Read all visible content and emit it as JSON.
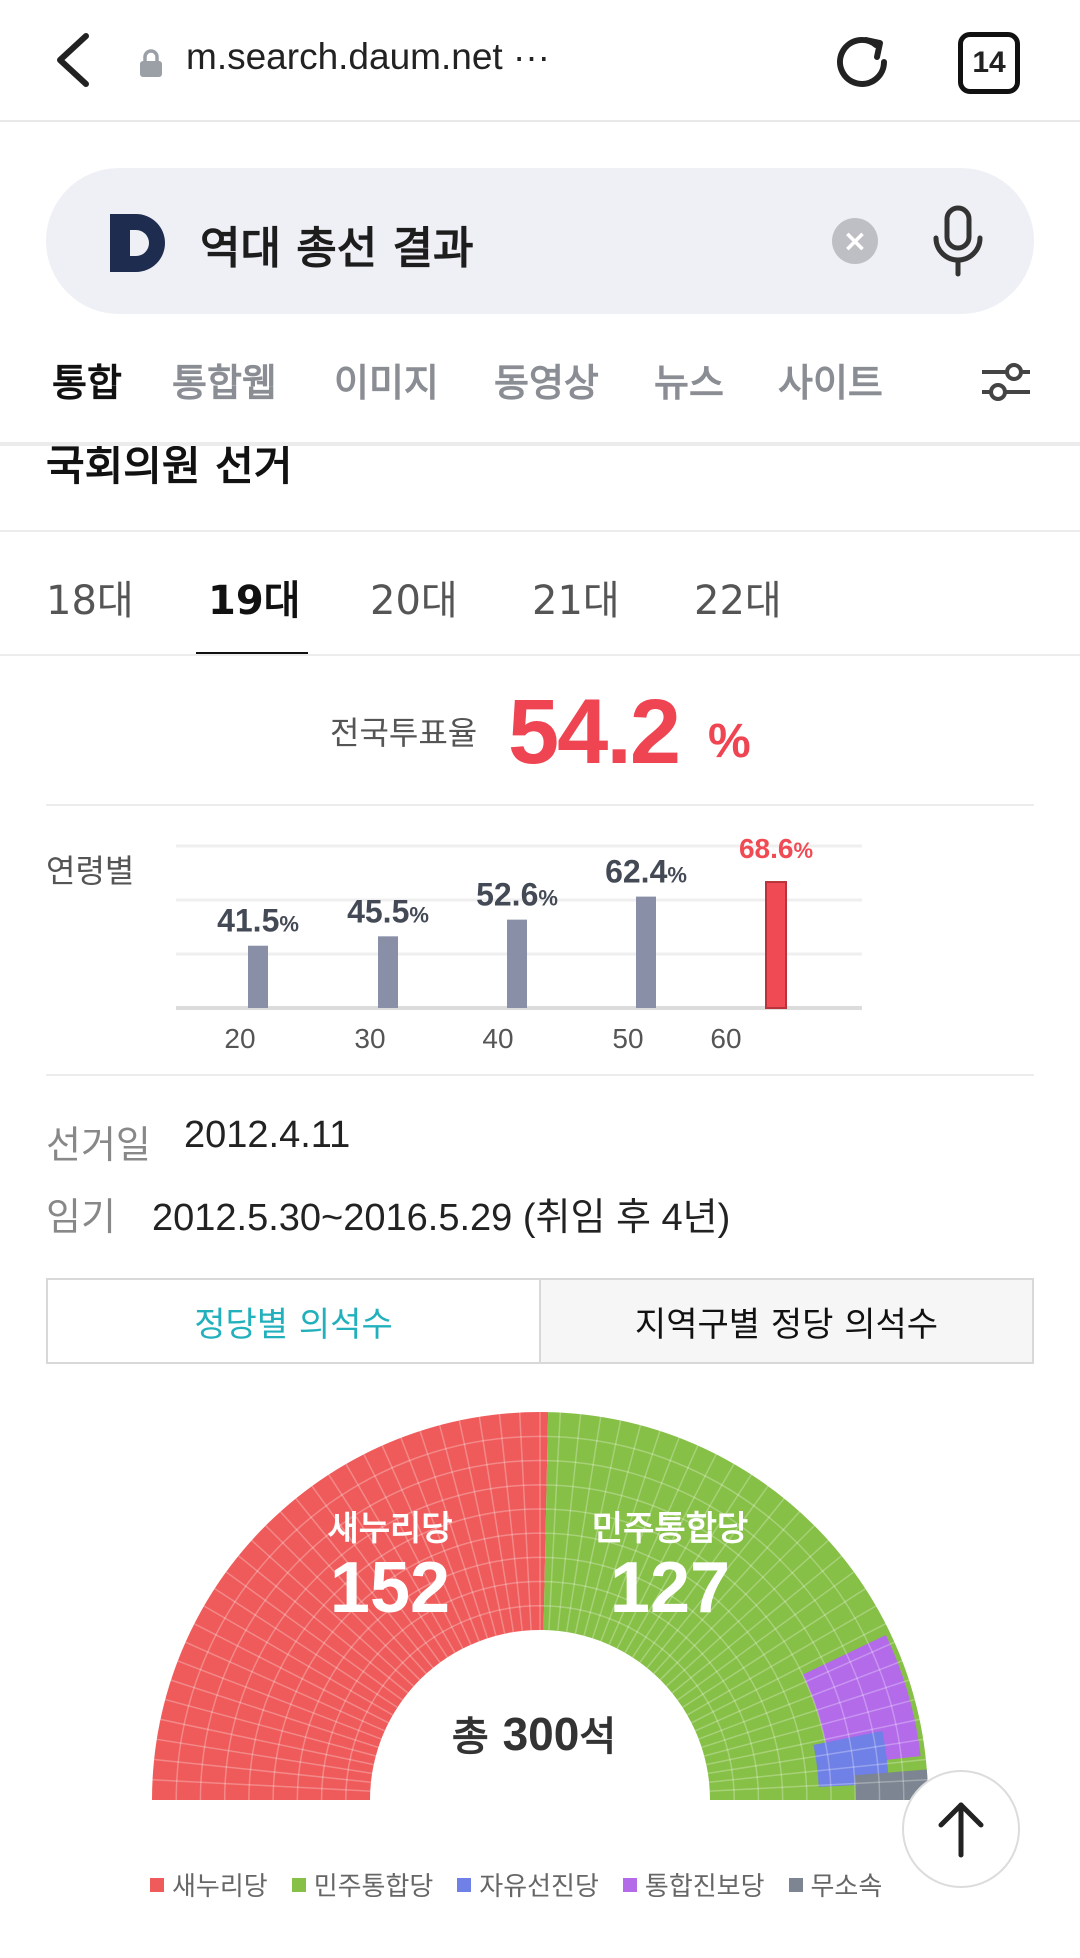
{
  "browser": {
    "url": "m.search.daum.net",
    "url_more": "···",
    "tab_count": "14"
  },
  "search": {
    "logo_letter": "D",
    "query": "역대 총선 결과",
    "clear_icon": "close-icon",
    "mic_icon": "mic-icon"
  },
  "categories": [
    "통합",
    "통합웹",
    "이미지",
    "동영상",
    "뉴스",
    "사이트"
  ],
  "section_title": "국회의원 선거",
  "election_tabs": [
    "18대",
    "19대",
    "20대",
    "21대",
    "22대"
  ],
  "active_election": "19대",
  "turnout": {
    "label": "전국투표율",
    "value": "54.2",
    "unit": "%"
  },
  "age_label": "연령별",
  "chart_data": {
    "type": "bar",
    "categories": [
      "20",
      "30",
      "40",
      "50",
      "60"
    ],
    "values": [
      41.5,
      45.5,
      52.6,
      62.4,
      68.6
    ],
    "value_labels": [
      "41.5",
      "45.5",
      "52.6",
      "62.4",
      "68.6"
    ],
    "unit": "%",
    "highlight_index": 4,
    "colors": {
      "normal": "#8a8fa8",
      "highlight": "#f04b54"
    },
    "grid": true
  },
  "info": {
    "election_date_label": "선거일",
    "election_date": "2012.4.11",
    "term_label": "임기",
    "term": "2012.5.30~2016.5.29 (취임 후 4년)"
  },
  "toggle": {
    "left": "정당별 의석수",
    "right": "지역구별 정당 의석수"
  },
  "seats": {
    "total_prefix": "총",
    "total_value": "300",
    "total_suffix": "석",
    "parties": [
      {
        "name": "새누리당",
        "seats": 152,
        "color": "#ef5b5b"
      },
      {
        "name": "민주통합당",
        "seats": 127,
        "color": "#86c046"
      },
      {
        "name": "자유선진당",
        "seats": 5,
        "color": "#6f80e6"
      },
      {
        "name": "통합진보당",
        "seats": 13,
        "color": "#b36bea"
      },
      {
        "name": "무소속",
        "seats": 3,
        "color": "#7c8591"
      }
    ]
  }
}
